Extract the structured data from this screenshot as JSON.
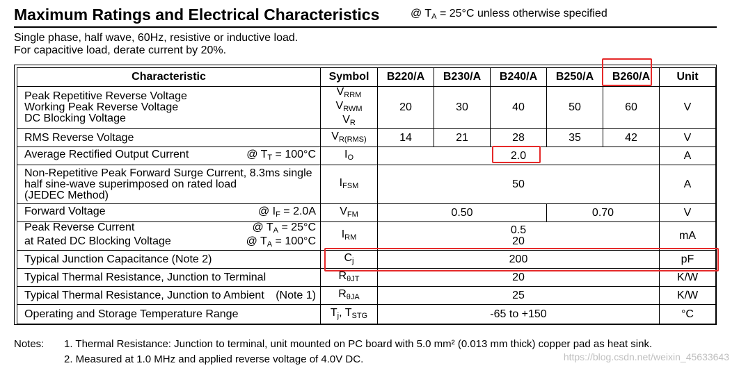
{
  "header": {
    "title": "Maximum Ratings and Electrical Characteristics",
    "condition": {
      "pre": "@ T",
      "sub": "A",
      "post": " = 25°C unless otherwise specified"
    }
  },
  "intro": [
    "Single phase, half wave, 60Hz, resistive or inductive load.",
    "For capacitive load, derate current by 20%."
  ],
  "table": {
    "headers": [
      "Characteristic",
      "Symbol",
      "B220/A",
      "B230/A",
      "B240/A",
      "B250/A",
      "B260/A",
      "Unit"
    ],
    "rows": [
      {
        "char": [
          "Peak Repetitive Reverse Voltage",
          "Working Peak Reverse Voltage",
          "DC Blocking Voltage"
        ],
        "symbol": [
          [
            "V",
            "RRM"
          ],
          [
            "V",
            "RWM"
          ],
          [
            "V",
            "R"
          ]
        ],
        "values": [
          "20",
          "30",
          "40",
          "50",
          "60"
        ],
        "unit": "V"
      },
      {
        "char": [
          "RMS Reverse Voltage"
        ],
        "symbol": [
          [
            "V",
            "R(RMS)"
          ]
        ],
        "values": [
          "14",
          "21",
          "28",
          "35",
          "42"
        ],
        "unit": "V"
      },
      {
        "char": [
          "Average Rectified Output Current"
        ],
        "cond": [
          "@ T",
          "T",
          " = 100°C"
        ],
        "symbol": [
          [
            "I",
            "O"
          ]
        ],
        "value": "2.0",
        "unit": "A"
      },
      {
        "char": [
          "Non-Repetitive Peak Forward Surge Current, 8.3ms single",
          "half sine-wave superimposed on rated load",
          "(JEDEC Method)"
        ],
        "symbol": [
          [
            "I",
            "FSM"
          ]
        ],
        "value": "50",
        "unit": "A"
      },
      {
        "char": [
          "Forward Voltage"
        ],
        "cond": [
          "@ I",
          "F",
          " = 2.0A"
        ],
        "symbol": [
          [
            "V",
            "FM"
          ]
        ],
        "values_split": [
          "0.50",
          "0.70"
        ],
        "unit": "V"
      },
      {
        "char": [
          "Peak Reverse Current",
          "at Rated DC Blocking Voltage"
        ],
        "conds": [
          [
            "@ T",
            "A",
            " = 25°C"
          ],
          [
            "@ T",
            "A",
            " = 100°C"
          ]
        ],
        "symbol": [
          [
            "I",
            "RM"
          ]
        ],
        "value_lines": [
          "0.5",
          "20"
        ],
        "unit": "mA"
      },
      {
        "char": [
          "Typical Junction Capacitance (Note 2)"
        ],
        "symbol": [
          [
            "C",
            "j"
          ]
        ],
        "value": "200",
        "unit": "pF"
      },
      {
        "char": [
          "Typical Thermal Resistance, Junction to Terminal"
        ],
        "symbol": [
          [
            "R",
            "θJT"
          ]
        ],
        "value": "20",
        "unit": "K/W"
      },
      {
        "char": [
          "Typical Thermal Resistance, Junction to Ambient"
        ],
        "note": "(Note 1)",
        "symbol": [
          [
            "R",
            "θJA"
          ]
        ],
        "value": "25",
        "unit": "K/W"
      },
      {
        "char": [
          "Operating and Storage Temperature Range"
        ],
        "symbol_text": [
          "T",
          "j",
          ", T",
          "STG"
        ],
        "value": "-65 to +150",
        "unit": "°C"
      }
    ]
  },
  "notes": {
    "label": "Notes:",
    "items": [
      "1. Thermal Resistance: Junction to terminal, unit mounted on PC board with 5.0 mm² (0.013 mm thick) copper pad as heat sink.",
      "2. Measured at 1.0 MHz and applied reverse voltage of 4.0V DC."
    ]
  },
  "watermark": "https://blog.csdn.net/weixin_45633643",
  "highlight_color": "#e52a2a"
}
